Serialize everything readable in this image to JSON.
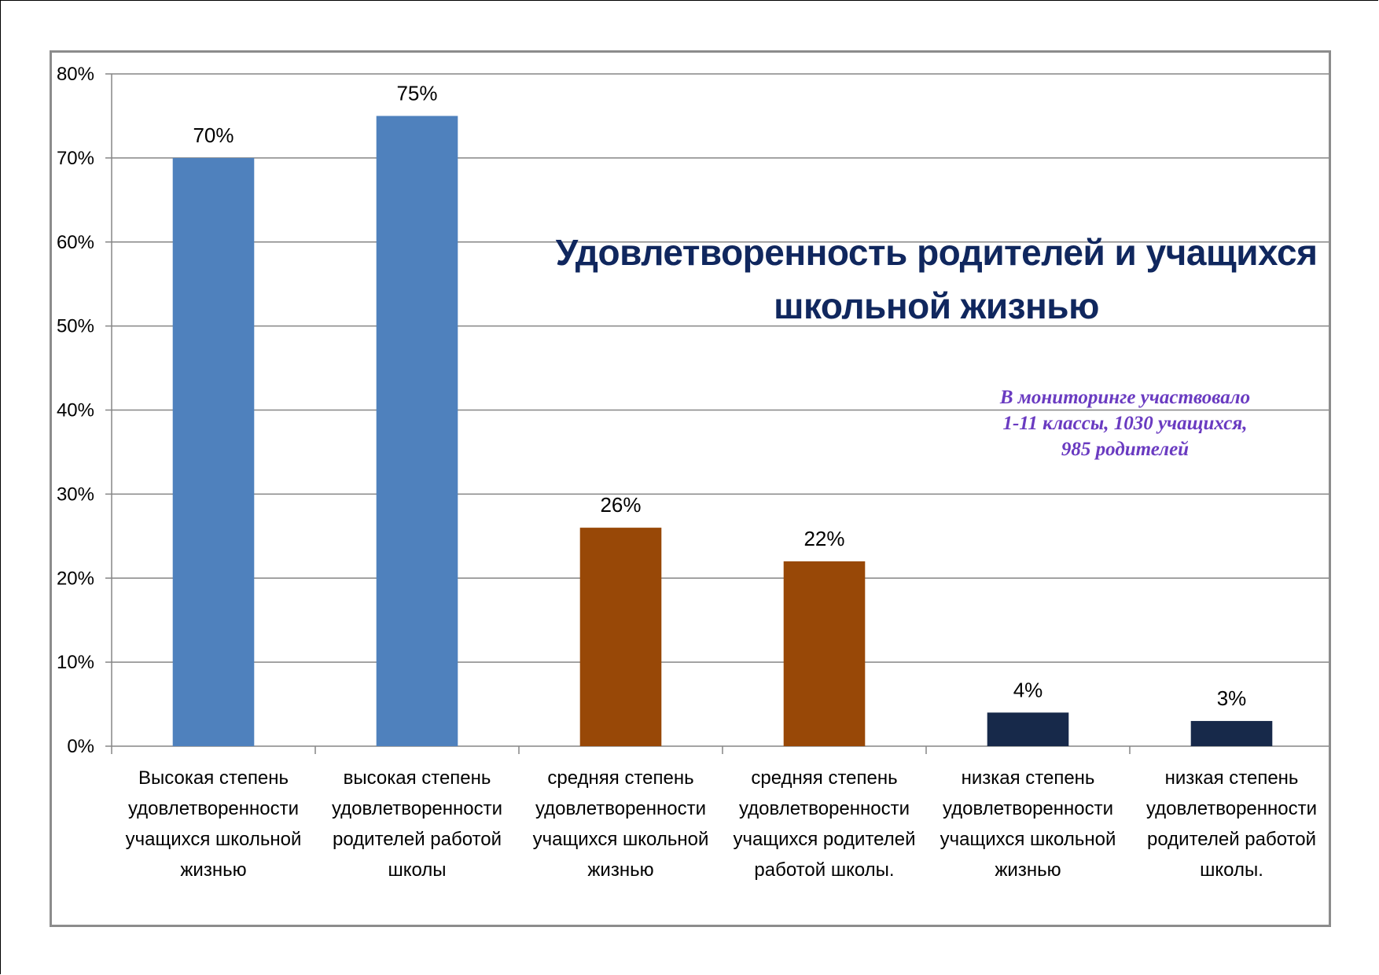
{
  "chart_data": {
    "type": "bar",
    "title": [
      "Удовлетворенность родителей  и учащихся",
      "школьной жизнью"
    ],
    "annotation": [
      "В мониторинге участвовало",
      "1-11 классы, 1030 учащихся,",
      "985 родителей"
    ],
    "categories": [
      [
        "Высокая степень",
        "удовлетворенности",
        "учащихся школьной",
        "жизнью"
      ],
      [
        "высокая степень",
        "удовлетворенности",
        "родителей работой",
        "школы"
      ],
      [
        "средняя степень",
        "удовлетворенности",
        "учащихся школьной",
        "жизнью"
      ],
      [
        "средняя степень",
        "удовлетворенности",
        "учащихся родителей",
        "работой школы."
      ],
      [
        "низкая степень",
        "удовлетворенности",
        "учащихся школьной",
        "жизнью"
      ],
      [
        "низкая степень",
        "удовлетворенности",
        "родителей работой",
        "школы."
      ]
    ],
    "values": [
      70,
      75,
      26,
      22,
      4,
      3
    ],
    "value_labels": [
      "70%",
      "75%",
      "26%",
      "22%",
      "4%",
      "3%"
    ],
    "bar_colors": [
      "#4f81bd",
      "#4f81bd",
      "#984807",
      "#984807",
      "#17294a",
      "#17294a"
    ],
    "yticks": [
      0,
      10,
      20,
      30,
      40,
      50,
      60,
      70,
      80
    ],
    "ytick_labels": [
      "0%",
      "10%",
      "20%",
      "30%",
      "40%",
      "50%",
      "60%",
      "70%",
      "80%"
    ],
    "ylim": [
      0,
      80
    ],
    "xlabel": "",
    "ylabel": "",
    "grid": true,
    "legend": "none",
    "colors": {
      "grid": "#868686",
      "title": "#10275e",
      "annotation": "#6a3bc1"
    }
  }
}
